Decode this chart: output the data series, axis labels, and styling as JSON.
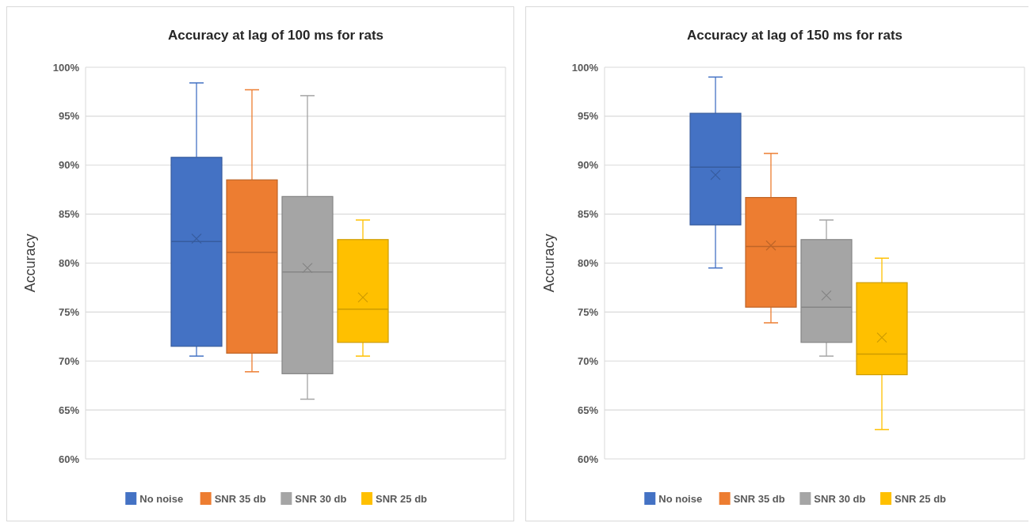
{
  "chart_data": [
    {
      "type": "box",
      "title": "Accuracy at lag of 100 ms for rats",
      "ylabel": "Accuracy",
      "categories": [
        null
      ],
      "ylim": [
        60,
        100
      ],
      "yticks": [
        {
          "value": 60,
          "label": "60%"
        },
        {
          "value": 65,
          "label": "65%"
        },
        {
          "value": 70,
          "label": "70%"
        },
        {
          "value": 75,
          "label": "75%"
        },
        {
          "value": 80,
          "label": "80%"
        },
        {
          "value": 85,
          "label": "85%"
        },
        {
          "value": 90,
          "label": "90%"
        },
        {
          "value": 95,
          "label": "95%"
        },
        {
          "value": 100,
          "label": "100%"
        }
      ],
      "grid": "y",
      "legend": "bottom",
      "series": [
        {
          "name": "No noise",
          "color": "#4472c4",
          "boxes": [
            {
              "low": 70.5,
              "q1": 71.5,
              "median": 82.2,
              "q3": 90.8,
              "high": 98.4,
              "mean": 82.5
            }
          ]
        },
        {
          "name": "SNR 35 db",
          "color": "#ed7d31",
          "boxes": [
            {
              "low": 68.9,
              "q1": 70.8,
              "median": 81.1,
              "q3": 88.5,
              "high": 97.7
            }
          ]
        },
        {
          "name": "SNR 30 db",
          "color": "#a5a5a5",
          "boxes": [
            {
              "low": 66.1,
              "q1": 68.7,
              "median": 79.1,
              "q3": 86.8,
              "high": 97.1,
              "mean": 79.5
            }
          ]
        },
        {
          "name": "SNR 25 db",
          "color": "#ffc000",
          "boxes": [
            {
              "low": 70.5,
              "q1": 71.9,
              "median": 75.3,
              "q3": 82.4,
              "high": 84.4,
              "mean": 76.5
            }
          ]
        }
      ]
    },
    {
      "type": "box",
      "title": "Accuracy at lag of 150 ms for rats",
      "ylabel": "Accuracy",
      "categories": [
        null
      ],
      "ylim": [
        60,
        100
      ],
      "yticks": [
        {
          "value": 60,
          "label": "60%"
        },
        {
          "value": 65,
          "label": "65%"
        },
        {
          "value": 70,
          "label": "70%"
        },
        {
          "value": 75,
          "label": "75%"
        },
        {
          "value": 80,
          "label": "80%"
        },
        {
          "value": 85,
          "label": "85%"
        },
        {
          "value": 90,
          "label": "90%"
        },
        {
          "value": 95,
          "label": "95%"
        },
        {
          "value": 100,
          "label": "100%"
        }
      ],
      "grid": "y",
      "legend": "bottom",
      "series": [
        {
          "name": "No noise",
          "color": "#4472c4",
          "boxes": [
            {
              "low": 79.5,
              "q1": 83.9,
              "median": 89.8,
              "q3": 95.3,
              "high": 99.0,
              "mean": 89.0
            }
          ]
        },
        {
          "name": "SNR 35 db",
          "color": "#ed7d31",
          "boxes": [
            {
              "low": 73.9,
              "q1": 75.5,
              "median": 81.7,
              "q3": 86.7,
              "high": 91.2,
              "mean": 81.8
            }
          ]
        },
        {
          "name": "SNR 30 db",
          "color": "#a5a5a5",
          "boxes": [
            {
              "low": 70.5,
              "q1": 71.9,
              "median": 75.5,
              "q3": 82.4,
              "high": 84.4,
              "mean": 76.7
            }
          ]
        },
        {
          "name": "SNR 25 db",
          "color": "#ffc000",
          "boxes": [
            {
              "low": 63.0,
              "q1": 68.6,
              "median": 70.7,
              "q3": 78.0,
              "high": 80.5,
              "mean": 72.4
            }
          ]
        }
      ]
    }
  ]
}
